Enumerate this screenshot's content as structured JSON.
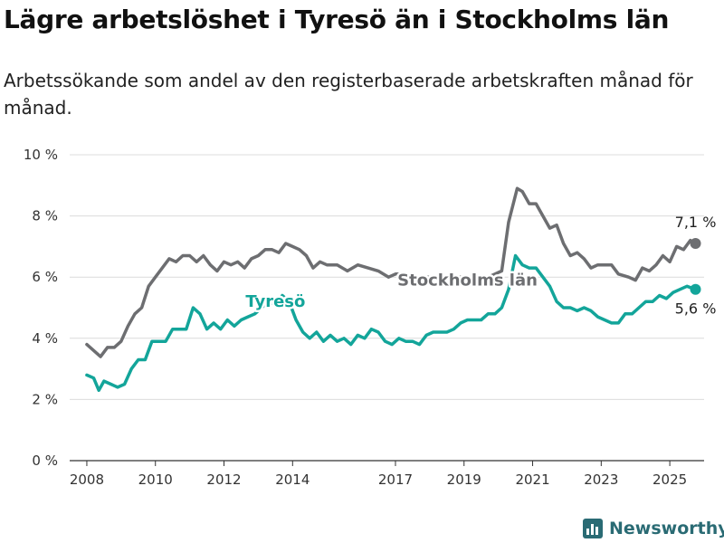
{
  "header": {
    "title": "Lägre arbetslöshet i Tyresö än i Stockholms län",
    "subtitle": "Arbetssökande som andel av den registerbaserade arbetskraften månad för månad."
  },
  "brand": {
    "name": "Newsworthy",
    "icon": "bar-chart-icon",
    "color": "#2a6b74"
  },
  "chart_data": {
    "type": "line",
    "title": "Lägre arbetslöshet i Tyresö än i Stockholms län",
    "subtitle": "Arbetssökande som andel av den registerbaserade arbetskraften månad för månad.",
    "ylim": [
      0,
      10
    ],
    "yticks": [
      0,
      2,
      4,
      6,
      8,
      10
    ],
    "ytick_labels": [
      "0 %",
      "2 %",
      "4 %",
      "6 %",
      "8 %",
      "10 %"
    ],
    "xlim": [
      2007.5,
      2026.0
    ],
    "xticks": [
      2008,
      2010,
      2012,
      2014,
      2017,
      2019,
      2021,
      2023,
      2025
    ],
    "xtick_labels": [
      "2008",
      "2010",
      "2012",
      "2014",
      "2017",
      "2019",
      "2021",
      "2023",
      "2025"
    ],
    "grid": "horizontal",
    "series": [
      {
        "name": "Stockholms län",
        "color": "#6d6e71",
        "end_label": "7,1 %",
        "points": [
          [
            2008.0,
            3.8
          ],
          [
            2008.4,
            3.4
          ],
          [
            2008.6,
            3.7
          ],
          [
            2008.8,
            3.7
          ],
          [
            2009.0,
            3.9
          ],
          [
            2009.2,
            4.4
          ],
          [
            2009.4,
            4.8
          ],
          [
            2009.6,
            5.0
          ],
          [
            2009.8,
            5.7
          ],
          [
            2010.0,
            6.0
          ],
          [
            2010.2,
            6.3
          ],
          [
            2010.4,
            6.6
          ],
          [
            2010.6,
            6.5
          ],
          [
            2010.8,
            6.7
          ],
          [
            2011.0,
            6.7
          ],
          [
            2011.2,
            6.5
          ],
          [
            2011.4,
            6.7
          ],
          [
            2011.6,
            6.4
          ],
          [
            2011.8,
            6.2
          ],
          [
            2012.0,
            6.5
          ],
          [
            2012.2,
            6.4
          ],
          [
            2012.4,
            6.5
          ],
          [
            2012.6,
            6.3
          ],
          [
            2012.8,
            6.6
          ],
          [
            2013.0,
            6.7
          ],
          [
            2013.2,
            6.9
          ],
          [
            2013.4,
            6.9
          ],
          [
            2013.6,
            6.8
          ],
          [
            2013.8,
            7.1
          ],
          [
            2014.0,
            7.0
          ],
          [
            2014.2,
            6.9
          ],
          [
            2014.4,
            6.7
          ],
          [
            2014.6,
            6.3
          ],
          [
            2014.8,
            6.5
          ],
          [
            2015.0,
            6.4
          ],
          [
            2015.3,
            6.4
          ],
          [
            2015.6,
            6.2
          ],
          [
            2015.9,
            6.4
          ],
          [
            2016.2,
            6.3
          ],
          [
            2016.5,
            6.2
          ],
          [
            2016.8,
            6.0
          ],
          [
            2017.0,
            6.1
          ],
          [
            2017.3,
            6.1
          ],
          [
            2017.6,
            6.0
          ],
          [
            2017.9,
            6.0
          ],
          [
            2018.2,
            6.0
          ],
          [
            2018.5,
            6.0
          ],
          [
            2018.8,
            6.0
          ],
          [
            2019.1,
            6.0
          ],
          [
            2019.4,
            6.0
          ],
          [
            2019.7,
            6.0
          ],
          [
            2019.9,
            6.1
          ],
          [
            2020.1,
            6.2
          ],
          [
            2020.3,
            7.8
          ],
          [
            2020.55,
            8.9
          ],
          [
            2020.7,
            8.8
          ],
          [
            2020.9,
            8.4
          ],
          [
            2021.1,
            8.4
          ],
          [
            2021.3,
            8.0
          ],
          [
            2021.5,
            7.6
          ],
          [
            2021.7,
            7.7
          ],
          [
            2021.9,
            7.1
          ],
          [
            2022.1,
            6.7
          ],
          [
            2022.3,
            6.8
          ],
          [
            2022.5,
            6.6
          ],
          [
            2022.7,
            6.3
          ],
          [
            2022.9,
            6.4
          ],
          [
            2023.1,
            6.4
          ],
          [
            2023.3,
            6.4
          ],
          [
            2023.5,
            6.1
          ],
          [
            2023.8,
            6.0
          ],
          [
            2024.0,
            5.9
          ],
          [
            2024.2,
            6.3
          ],
          [
            2024.4,
            6.2
          ],
          [
            2024.6,
            6.4
          ],
          [
            2024.8,
            6.7
          ],
          [
            2025.0,
            6.5
          ],
          [
            2025.2,
            7.0
          ],
          [
            2025.4,
            6.9
          ],
          [
            2025.6,
            7.2
          ],
          [
            2025.75,
            7.1
          ]
        ]
      },
      {
        "name": "Tyresö",
        "color": "#13a59a",
        "end_label": "5,6 %",
        "points": [
          [
            2008.0,
            2.8
          ],
          [
            2008.2,
            2.7
          ],
          [
            2008.35,
            2.3
          ],
          [
            2008.5,
            2.6
          ],
          [
            2008.7,
            2.5
          ],
          [
            2008.9,
            2.4
          ],
          [
            2009.1,
            2.5
          ],
          [
            2009.3,
            3.0
          ],
          [
            2009.5,
            3.3
          ],
          [
            2009.7,
            3.3
          ],
          [
            2009.9,
            3.9
          ],
          [
            2010.1,
            3.9
          ],
          [
            2010.3,
            3.9
          ],
          [
            2010.5,
            4.3
          ],
          [
            2010.7,
            4.3
          ],
          [
            2010.9,
            4.3
          ],
          [
            2011.1,
            5.0
          ],
          [
            2011.3,
            4.8
          ],
          [
            2011.5,
            4.3
          ],
          [
            2011.7,
            4.5
          ],
          [
            2011.9,
            4.3
          ],
          [
            2012.1,
            4.6
          ],
          [
            2012.3,
            4.4
          ],
          [
            2012.5,
            4.6
          ],
          [
            2012.7,
            4.7
          ],
          [
            2012.9,
            4.8
          ],
          [
            2013.1,
            5.0
          ],
          [
            2013.3,
            5.2
          ],
          [
            2013.5,
            5.1
          ],
          [
            2013.7,
            5.4
          ],
          [
            2013.9,
            5.2
          ],
          [
            2014.1,
            4.6
          ],
          [
            2014.3,
            4.2
          ],
          [
            2014.5,
            4.0
          ],
          [
            2014.7,
            4.2
          ],
          [
            2014.9,
            3.9
          ],
          [
            2015.1,
            4.1
          ],
          [
            2015.3,
            3.9
          ],
          [
            2015.5,
            4.0
          ],
          [
            2015.7,
            3.8
          ],
          [
            2015.9,
            4.1
          ],
          [
            2016.1,
            4.0
          ],
          [
            2016.3,
            4.3
          ],
          [
            2016.5,
            4.2
          ],
          [
            2016.7,
            3.9
          ],
          [
            2016.9,
            3.8
          ],
          [
            2017.1,
            4.0
          ],
          [
            2017.3,
            3.9
          ],
          [
            2017.5,
            3.9
          ],
          [
            2017.7,
            3.8
          ],
          [
            2017.9,
            4.1
          ],
          [
            2018.1,
            4.2
          ],
          [
            2018.3,
            4.2
          ],
          [
            2018.5,
            4.2
          ],
          [
            2018.7,
            4.3
          ],
          [
            2018.9,
            4.5
          ],
          [
            2019.1,
            4.6
          ],
          [
            2019.3,
            4.6
          ],
          [
            2019.5,
            4.6
          ],
          [
            2019.7,
            4.8
          ],
          [
            2019.9,
            4.8
          ],
          [
            2020.1,
            5.0
          ],
          [
            2020.3,
            5.6
          ],
          [
            2020.5,
            6.7
          ],
          [
            2020.7,
            6.4
          ],
          [
            2020.9,
            6.3
          ],
          [
            2021.1,
            6.3
          ],
          [
            2021.3,
            6.0
          ],
          [
            2021.5,
            5.7
          ],
          [
            2021.7,
            5.2
          ],
          [
            2021.9,
            5.0
          ],
          [
            2022.1,
            5.0
          ],
          [
            2022.3,
            4.9
          ],
          [
            2022.5,
            5.0
          ],
          [
            2022.7,
            4.9
          ],
          [
            2022.9,
            4.7
          ],
          [
            2023.1,
            4.6
          ],
          [
            2023.3,
            4.5
          ],
          [
            2023.5,
            4.5
          ],
          [
            2023.7,
            4.8
          ],
          [
            2023.9,
            4.8
          ],
          [
            2024.1,
            5.0
          ],
          [
            2024.3,
            5.2
          ],
          [
            2024.5,
            5.2
          ],
          [
            2024.7,
            5.4
          ],
          [
            2024.9,
            5.3
          ],
          [
            2025.1,
            5.5
          ],
          [
            2025.3,
            5.6
          ],
          [
            2025.5,
            5.7
          ],
          [
            2025.75,
            5.6
          ]
        ]
      }
    ],
    "annotations": [
      {
        "text": "Stockholms län",
        "series": "Stockholms län",
        "x": 2019.1,
        "y": 5.9
      },
      {
        "text": "Tyresö",
        "series": "Tyresö",
        "x": 2013.5,
        "y": 5.2
      }
    ]
  }
}
